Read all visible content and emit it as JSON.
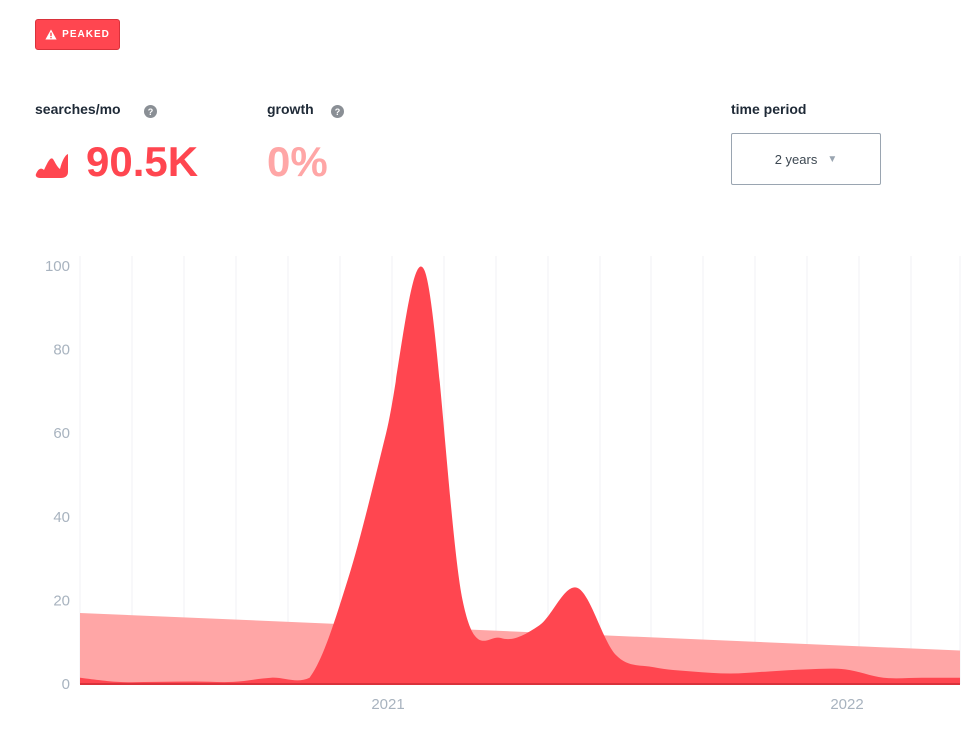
{
  "status_badge": {
    "label": "PEAKED",
    "icon": "warning-icon"
  },
  "metrics": {
    "searches": {
      "label": "searches/mo",
      "help_icon": "question-icon",
      "value": "90.5K",
      "trend_icon": "trend-peak-icon",
      "color": "#ff4650"
    },
    "growth": {
      "label": "growth",
      "help_icon": "question-icon",
      "value": "0%",
      "color": "#ffa6a6"
    }
  },
  "time_period": {
    "label": "time period",
    "selected": "2 years",
    "caret_icon": "chevron-down-icon"
  },
  "colors": {
    "primary": "#ff4650",
    "trend_fill": "#ffa6a6",
    "axis_text": "#a8b3bf",
    "grid": "#f0f2f4"
  },
  "chart_data": {
    "type": "area",
    "x_ticks": [
      "2021",
      "2022"
    ],
    "ylim": [
      0,
      100
    ],
    "y_ticks": [
      0,
      20,
      40,
      60,
      80,
      100
    ],
    "grid": "vertical",
    "series": [
      {
        "role": "trend",
        "color": "#ffa6a6",
        "values": [
          17,
          8
        ]
      },
      {
        "role": "searches",
        "color": "#ff4650",
        "values": [
          1.5,
          0.5,
          0.5,
          0.6,
          0.5,
          1.5,
          1.5,
          25,
          60,
          99,
          20,
          11,
          14,
          23,
          7,
          4,
          3,
          2.5,
          3,
          3.5,
          3.5,
          1.5,
          1.5,
          1.5
        ]
      }
    ]
  }
}
